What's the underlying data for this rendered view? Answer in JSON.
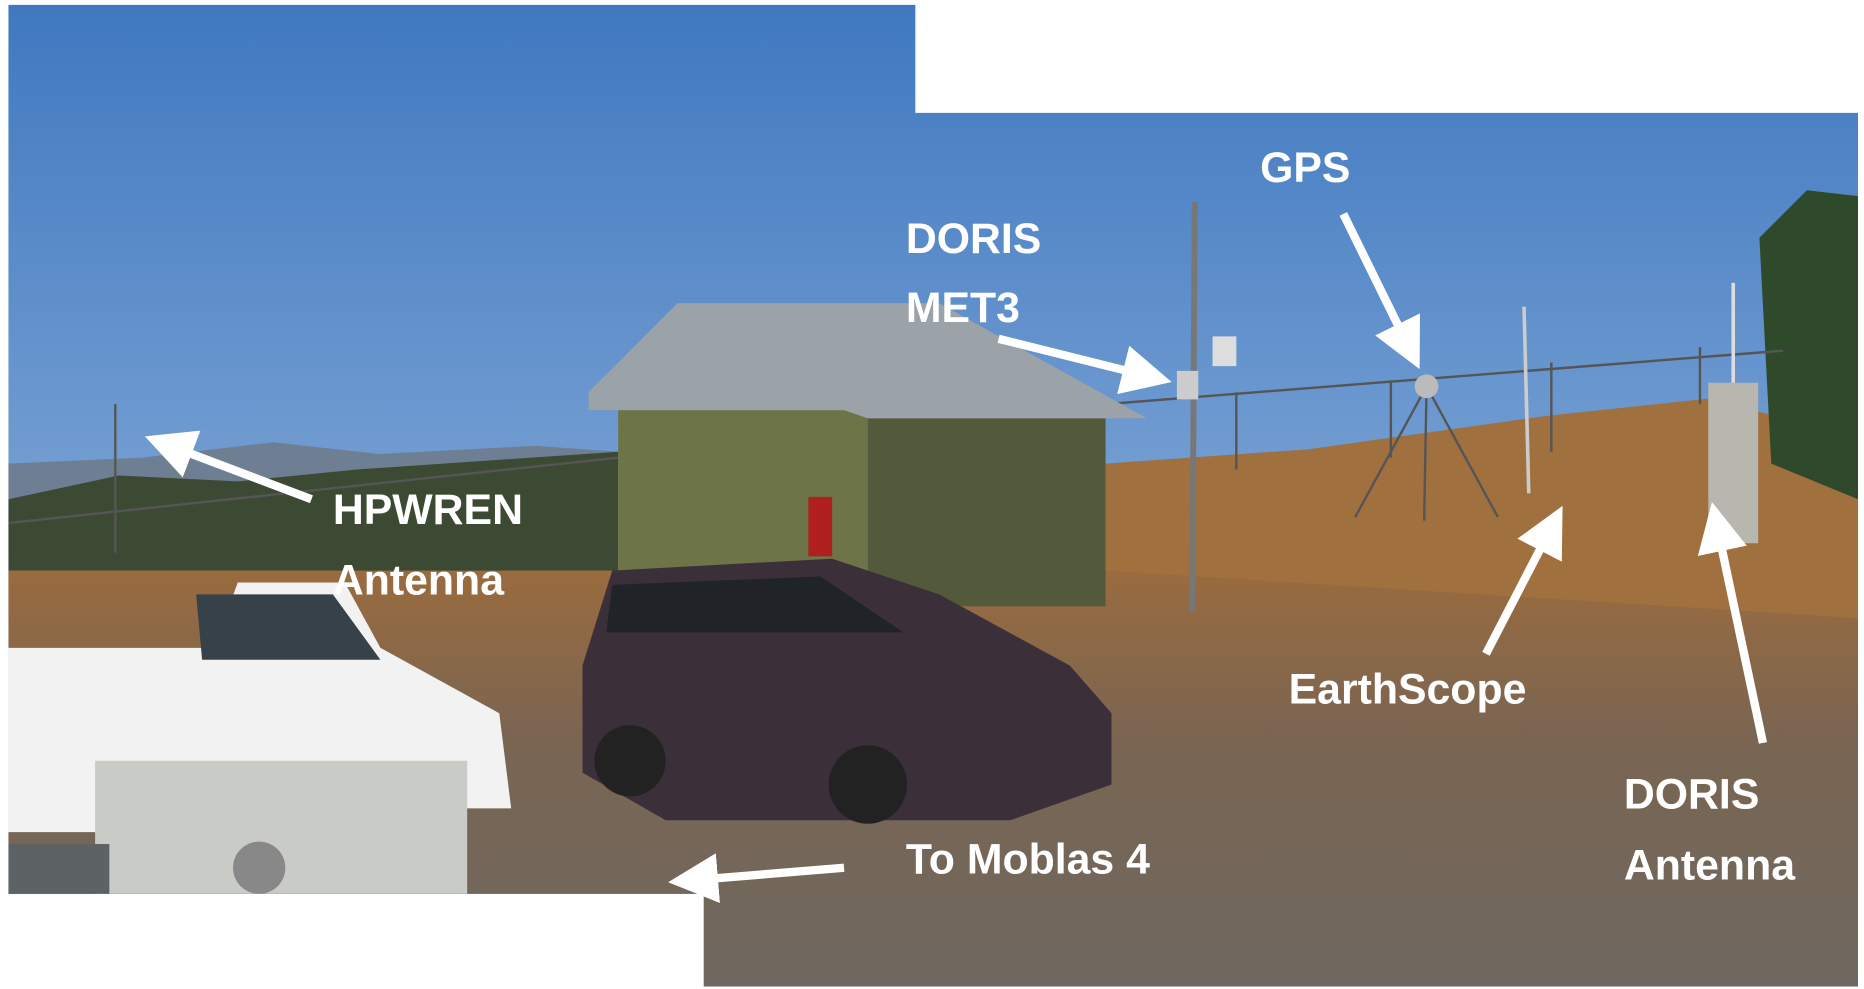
{
  "labels": {
    "gps": "GPS",
    "doris_met3": [
      "DORIS",
      "MET3"
    ],
    "hpwren": [
      "HPWREN",
      "Antenna"
    ],
    "earthscope": "EarthScope",
    "doris_antenna": [
      "DORIS",
      "Antenna"
    ],
    "moblas": "To Moblas 4"
  }
}
